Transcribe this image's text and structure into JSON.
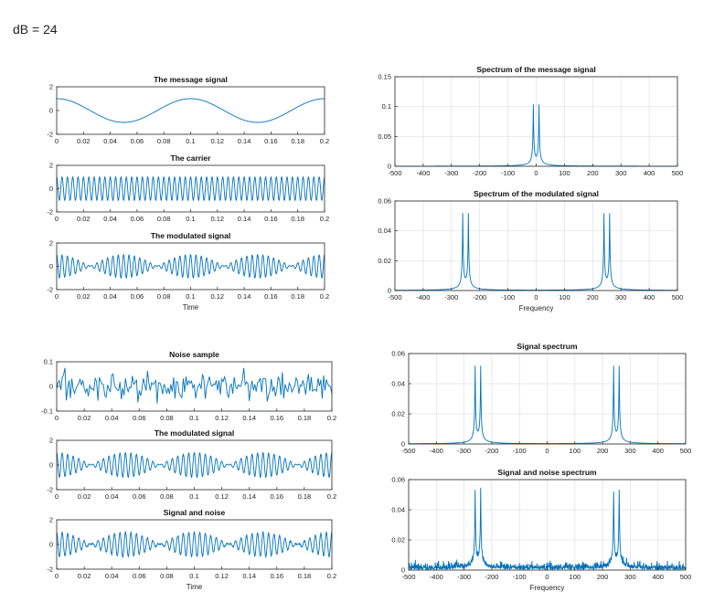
{
  "heading": "dB = 24",
  "chart_data": [
    {
      "type": "line",
      "title": "The message signal",
      "xlabel": "",
      "xlim": [
        0,
        0.2
      ],
      "ylim": [
        -2,
        2
      ],
      "xticks": [
        0,
        0.02,
        0.04,
        0.06,
        0.08,
        0.1,
        0.12,
        0.14,
        0.16,
        0.18,
        0.2
      ],
      "xtick_labels": [
        "0",
        "0.02",
        "0.04",
        "0.06",
        "0.08",
        "0.1",
        "0.12",
        "0.14",
        "0.16",
        "0.18",
        "0.2"
      ],
      "yticks": [
        -2,
        0,
        2
      ],
      "ytick_labels": [
        "-2",
        "0",
        "2"
      ],
      "grid": false,
      "series": [
        {
          "kind": "cosine",
          "amplitude": 1,
          "frequency_hz": 10
        }
      ]
    },
    {
      "type": "line",
      "title": "The carrier",
      "xlabel": "",
      "xlim": [
        0,
        0.2
      ],
      "ylim": [
        -2,
        2
      ],
      "xticks": [
        0,
        0.02,
        0.04,
        0.06,
        0.08,
        0.1,
        0.12,
        0.14,
        0.16,
        0.18,
        0.2
      ],
      "xtick_labels": [
        "0",
        "0.02",
        "0.04",
        "0.06",
        "0.08",
        "0.1",
        "0.12",
        "0.14",
        "0.16",
        "0.18",
        "0.2"
      ],
      "yticks": [
        -2,
        0,
        2
      ],
      "ytick_labels": [
        "-2",
        "0",
        "2"
      ],
      "grid": false,
      "series": [
        {
          "kind": "cosine",
          "amplitude": 1,
          "frequency_hz": 250
        }
      ]
    },
    {
      "type": "line",
      "title": "The modulated signal",
      "xlabel": "Time",
      "xlim": [
        0,
        0.2
      ],
      "ylim": [
        -2,
        2
      ],
      "xticks": [
        0,
        0.02,
        0.04,
        0.06,
        0.08,
        0.1,
        0.12,
        0.14,
        0.16,
        0.18,
        0.2
      ],
      "xtick_labels": [
        "0",
        "0.02",
        "0.04",
        "0.06",
        "0.08",
        "0.1",
        "0.12",
        "0.14",
        "0.16",
        "0.18",
        "0.2"
      ],
      "yticks": [
        -2,
        0,
        2
      ],
      "ytick_labels": [
        "-2",
        "0",
        "2"
      ],
      "grid": false,
      "series": [
        {
          "kind": "product",
          "message_hz": 10,
          "carrier_hz": 250,
          "amplitude": 1
        }
      ]
    },
    {
      "type": "line",
      "title": "Spectrum of the message signal",
      "xlabel": "",
      "xlim": [
        -500,
        500
      ],
      "ylim": [
        0,
        0.15
      ],
      "xticks": [
        -500,
        -400,
        -300,
        -200,
        -100,
        0,
        100,
        200,
        300,
        400,
        500
      ],
      "xtick_labels": [
        "-500",
        "-400",
        "-300",
        "-200",
        "-100",
        "0",
        "100",
        "200",
        "300",
        "400",
        "500"
      ],
      "yticks": [
        0,
        0.05,
        0.1,
        0.15
      ],
      "ytick_labels": [
        "0",
        "0.05",
        "0.1",
        "0.15"
      ],
      "grid": true,
      "series": [
        {
          "kind": "spectrum",
          "peaks_hz": [
            -10,
            10
          ],
          "peak_value": 0.1,
          "noise_floor": 0
        }
      ]
    },
    {
      "type": "line",
      "title": "Spectrum of the modulated signal",
      "xlabel": "Frequency",
      "xlim": [
        -500,
        500
      ],
      "ylim": [
        0,
        0.06
      ],
      "xticks": [
        -500,
        -400,
        -300,
        -200,
        -100,
        0,
        100,
        200,
        300,
        400,
        500
      ],
      "xtick_labels": [
        "-500",
        "-400",
        "-300",
        "-200",
        "-100",
        "0",
        "100",
        "200",
        "300",
        "400",
        "500"
      ],
      "yticks": [
        0,
        0.02,
        0.04,
        0.06
      ],
      "ytick_labels": [
        "0",
        "0.02",
        "0.04",
        "0.06"
      ],
      "grid": true,
      "series": [
        {
          "kind": "spectrum",
          "peaks_hz": [
            -260,
            -240,
            240,
            260
          ],
          "peak_value": 0.05,
          "noise_floor": 0
        }
      ]
    },
    {
      "type": "line",
      "title": "Noise sample",
      "xlabel": "",
      "xlim": [
        0,
        0.2
      ],
      "ylim": [
        -0.1,
        0.1
      ],
      "xticks": [
        0,
        0.02,
        0.04,
        0.06,
        0.08,
        0.1,
        0.12,
        0.14,
        0.16,
        0.18,
        0.2
      ],
      "xtick_labels": [
        "0",
        "0.02",
        "0.04",
        "0.06",
        "0.08",
        "0.1",
        "0.12",
        "0.14",
        "0.16",
        "0.18",
        "0.2"
      ],
      "yticks": [
        -0.1,
        0,
        0.1
      ],
      "ytick_labels": [
        "-0.1",
        "0",
        "0.1"
      ],
      "grid": false,
      "series": [
        {
          "kind": "noise",
          "std": 0.03
        }
      ]
    },
    {
      "type": "line",
      "title": "The modulated signal",
      "xlabel": "",
      "xlim": [
        0,
        0.2
      ],
      "ylim": [
        -2,
        2
      ],
      "xticks": [
        0,
        0.02,
        0.04,
        0.06,
        0.08,
        0.1,
        0.12,
        0.14,
        0.16,
        0.18,
        0.2
      ],
      "xtick_labels": [
        "0",
        "0.02",
        "0.04",
        "0.06",
        "0.08",
        "0.1",
        "0.12",
        "0.14",
        "0.16",
        "0.18",
        "0.2"
      ],
      "yticks": [
        -2,
        0,
        2
      ],
      "ytick_labels": [
        "-2",
        "0",
        "2"
      ],
      "grid": false,
      "series": [
        {
          "kind": "product",
          "message_hz": 10,
          "carrier_hz": 250,
          "amplitude": 1
        }
      ]
    },
    {
      "type": "line",
      "title": "Signal and noise",
      "xlabel": "Time",
      "xlim": [
        0,
        0.2
      ],
      "ylim": [
        -2,
        2
      ],
      "xticks": [
        0,
        0.02,
        0.04,
        0.06,
        0.08,
        0.1,
        0.12,
        0.14,
        0.16,
        0.18,
        0.2
      ],
      "xtick_labels": [
        "0",
        "0.02",
        "0.04",
        "0.06",
        "0.08",
        "0.1",
        "0.12",
        "0.14",
        "0.16",
        "0.18",
        "0.2"
      ],
      "yticks": [
        -2,
        0,
        2
      ],
      "ytick_labels": [
        "-2",
        "0",
        "2"
      ],
      "grid": false,
      "series": [
        {
          "kind": "product_noise",
          "message_hz": 10,
          "carrier_hz": 250,
          "amplitude": 1,
          "noise_std": 0.03
        }
      ]
    },
    {
      "type": "line",
      "title": "Signal spectrum",
      "xlabel": "",
      "xlim": [
        -500,
        500
      ],
      "ylim": [
        0,
        0.06
      ],
      "xticks": [
        -500,
        -400,
        -300,
        -200,
        -100,
        0,
        100,
        200,
        300,
        400,
        500
      ],
      "xtick_labels": [
        "-500",
        "-400",
        "-300",
        "-200",
        "-100",
        "0",
        "100",
        "200",
        "300",
        "400",
        "500"
      ],
      "yticks": [
        0,
        0.02,
        0.04,
        0.06
      ],
      "ytick_labels": [
        "0",
        "0.02",
        "0.04",
        "0.06"
      ],
      "grid": true,
      "series": [
        {
          "kind": "spectrum",
          "peaks_hz": [
            -260,
            -240,
            240,
            260
          ],
          "peak_value": 0.05,
          "noise_floor": 0
        }
      ]
    },
    {
      "type": "line",
      "title": "Signal and noise spectrum",
      "xlabel": "Frequency",
      "xlim": [
        -500,
        500
      ],
      "ylim": [
        0,
        0.06
      ],
      "xticks": [
        -500,
        -400,
        -300,
        -200,
        -100,
        0,
        100,
        200,
        300,
        400,
        500
      ],
      "xtick_labels": [
        "-500",
        "-400",
        "-300",
        "-200",
        "-100",
        "0",
        "100",
        "200",
        "300",
        "400",
        "500"
      ],
      "yticks": [
        0,
        0.02,
        0.04,
        0.06
      ],
      "ytick_labels": [
        "0",
        "0.02",
        "0.04",
        "0.06"
      ],
      "grid": true,
      "series": [
        {
          "kind": "spectrum",
          "peaks_hz": [
            -260,
            -240,
            240,
            260
          ],
          "peak_value": 0.05,
          "noise_floor": 0.002
        }
      ]
    }
  ],
  "colors": {
    "line": "#0072bd",
    "axis": "#262626",
    "grid": "#e0e0e0"
  }
}
